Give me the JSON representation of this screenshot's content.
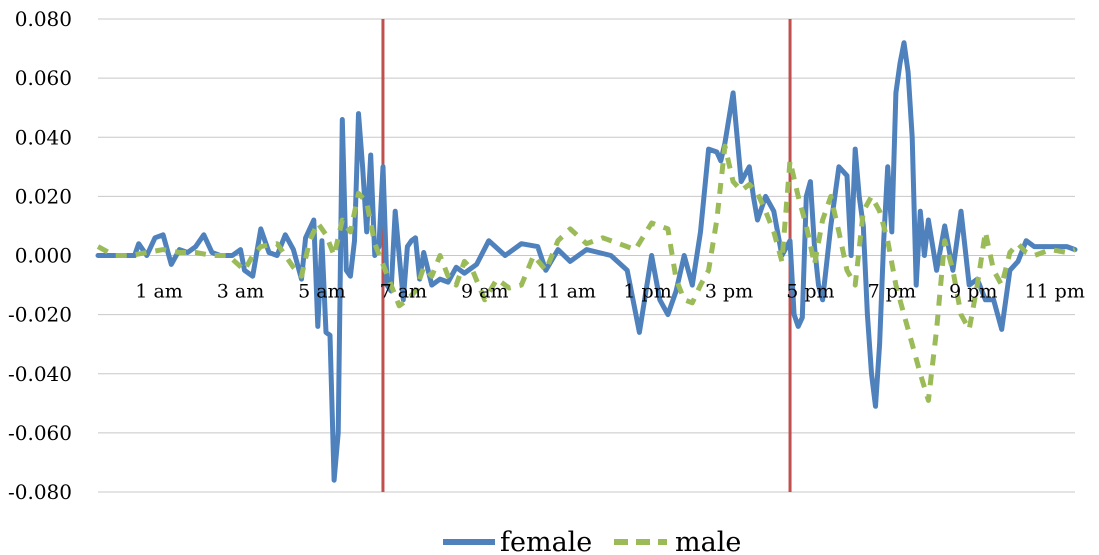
{
  "chart_data": {
    "type": "line",
    "title": "",
    "xlabel": "",
    "ylabel": "",
    "xlim": [
      0,
      24
    ],
    "ylim": [
      -0.08,
      0.08
    ],
    "y_ticks": [
      "0.080",
      "0.060",
      "0.040",
      "0.020",
      "0.000",
      "-0.020",
      "-0.040",
      "-0.060",
      "-0.080"
    ],
    "y_tick_values": [
      0.08,
      0.06,
      0.04,
      0.02,
      0.0,
      -0.02,
      -0.04,
      -0.06,
      -0.08
    ],
    "x_ticks": [
      "1 am",
      "3 am",
      "5 am",
      "7 am",
      "9 am",
      "11 am",
      "1 pm",
      "3 pm",
      "5 pm",
      "7 pm",
      "9 pm",
      "11 pm"
    ],
    "x_tick_values": [
      1.5,
      3.5,
      5.5,
      7.5,
      9.5,
      11.5,
      13.5,
      15.5,
      17.5,
      19.5,
      21.5,
      23.5
    ],
    "grid": "horizontal",
    "legend": "bottom",
    "vertical_markers": [
      {
        "x": 7.0,
        "color": "#c0504d"
      },
      {
        "x": 17.0,
        "color": "#c0504d"
      }
    ],
    "series": [
      {
        "name": "female",
        "style": "solid",
        "color": "#4f81bd",
        "x": [
          0.0,
          0.5,
          0.9,
          1.0,
          1.2,
          1.4,
          1.6,
          1.8,
          2.0,
          2.2,
          2.4,
          2.6,
          2.8,
          3.0,
          3.3,
          3.5,
          3.6,
          3.8,
          4.0,
          4.2,
          4.4,
          4.6,
          4.8,
          5.0,
          5.1,
          5.3,
          5.4,
          5.5,
          5.6,
          5.7,
          5.8,
          5.9,
          6.0,
          6.1,
          6.2,
          6.3,
          6.4,
          6.5,
          6.6,
          6.7,
          6.8,
          6.9,
          7.0,
          7.1,
          7.2,
          7.3,
          7.4,
          7.5,
          7.6,
          7.7,
          7.8,
          7.9,
          8.0,
          8.2,
          8.4,
          8.6,
          8.8,
          9.0,
          9.3,
          9.6,
          10.0,
          10.4,
          10.8,
          11.0,
          11.3,
          11.6,
          12.0,
          12.3,
          12.6,
          13.0,
          13.3,
          13.6,
          13.8,
          14.0,
          14.2,
          14.4,
          14.6,
          14.8,
          15.0,
          15.2,
          15.3,
          15.4,
          15.6,
          15.8,
          16.0,
          16.1,
          16.2,
          16.4,
          16.6,
          16.8,
          17.0,
          17.1,
          17.2,
          17.3,
          17.4,
          17.5,
          17.6,
          17.7,
          17.8,
          18.0,
          18.2,
          18.4,
          18.5,
          18.6,
          18.7,
          18.8,
          18.9,
          19.0,
          19.1,
          19.2,
          19.3,
          19.4,
          19.5,
          19.6,
          19.7,
          19.8,
          19.9,
          20.0,
          20.1,
          20.2,
          20.3,
          20.4,
          20.6,
          20.8,
          21.0,
          21.2,
          21.4,
          21.6,
          21.8,
          22.0,
          22.2,
          22.4,
          22.6,
          22.8,
          23.0,
          23.4,
          23.8,
          24.0
        ],
        "y": [
          0.0,
          0.0,
          0.0,
          0.004,
          0.0,
          0.006,
          0.007,
          -0.003,
          0.002,
          0.001,
          0.003,
          0.007,
          0.001,
          0.0,
          0.0,
          0.002,
          -0.005,
          -0.007,
          0.009,
          0.001,
          0.0,
          0.007,
          0.002,
          -0.008,
          0.006,
          0.012,
          -0.024,
          0.005,
          -0.026,
          -0.027,
          -0.076,
          -0.06,
          0.046,
          -0.005,
          -0.007,
          0.005,
          0.048,
          0.03,
          0.008,
          0.034,
          0.0,
          0.003,
          0.03,
          -0.01,
          -0.012,
          0.015,
          0.0,
          -0.015,
          0.003,
          0.005,
          0.006,
          -0.008,
          0.001,
          -0.01,
          -0.008,
          -0.009,
          -0.004,
          -0.006,
          -0.003,
          0.005,
          0.0,
          0.004,
          0.003,
          -0.005,
          0.002,
          -0.002,
          0.002,
          0.001,
          0.0,
          -0.005,
          -0.026,
          0.0,
          -0.015,
          -0.02,
          -0.012,
          0.0,
          -0.01,
          0.008,
          0.036,
          0.035,
          0.032,
          0.038,
          0.055,
          0.025,
          0.03,
          0.02,
          0.012,
          0.02,
          0.015,
          0.0,
          0.005,
          -0.02,
          -0.024,
          -0.021,
          0.02,
          0.025,
          0.003,
          -0.01,
          -0.015,
          0.01,
          0.03,
          0.027,
          0.0,
          0.036,
          0.02,
          0.01,
          -0.02,
          -0.04,
          -0.051,
          -0.03,
          0.005,
          0.03,
          0.008,
          0.055,
          0.065,
          0.072,
          0.062,
          0.04,
          -0.01,
          0.015,
          0.0,
          0.012,
          -0.005,
          0.01,
          -0.005,
          0.015,
          -0.01,
          -0.008,
          -0.015,
          -0.015,
          -0.025,
          -0.005,
          -0.002,
          0.005,
          0.003,
          0.003,
          0.003,
          0.002
        ]
      },
      {
        "name": "male",
        "style": "dashed",
        "color": "#9bbb59",
        "x": [
          0.0,
          0.4,
          0.8,
          1.2,
          1.6,
          2.0,
          2.4,
          2.8,
          3.2,
          3.6,
          3.8,
          4.0,
          4.4,
          4.8,
          5.0,
          5.2,
          5.4,
          5.6,
          5.8,
          6.0,
          6.2,
          6.4,
          6.6,
          6.8,
          7.0,
          7.2,
          7.4,
          7.6,
          7.8,
          8.0,
          8.2,
          8.4,
          8.6,
          8.8,
          9.0,
          9.2,
          9.5,
          9.8,
          10.1,
          10.4,
          10.7,
          11.0,
          11.3,
          11.6,
          12.0,
          12.4,
          12.8,
          13.2,
          13.6,
          14.0,
          14.2,
          14.4,
          14.6,
          14.8,
          15.0,
          15.2,
          15.4,
          15.6,
          15.8,
          16.0,
          16.2,
          16.4,
          16.6,
          16.8,
          17.0,
          17.2,
          17.4,
          17.6,
          17.8,
          18.0,
          18.2,
          18.4,
          18.6,
          18.8,
          19.0,
          19.2,
          19.4,
          19.6,
          19.8,
          20.0,
          20.2,
          20.4,
          20.6,
          20.8,
          21.0,
          21.2,
          21.4,
          21.6,
          21.8,
          22.0,
          22.2,
          22.4,
          22.6,
          22.8,
          23.0,
          23.4,
          23.8,
          24.0
        ],
        "y": [
          0.003,
          0.0,
          0.0,
          0.001,
          0.002,
          0.001,
          0.001,
          0.0,
          0.0,
          -0.005,
          0.0,
          0.003,
          0.004,
          -0.004,
          -0.007,
          0.005,
          0.011,
          0.007,
          0.0,
          0.012,
          0.008,
          0.021,
          0.018,
          0.004,
          -0.003,
          -0.01,
          -0.017,
          -0.015,
          -0.012,
          -0.004,
          -0.007,
          0.0,
          -0.007,
          -0.01,
          -0.002,
          -0.005,
          -0.015,
          -0.008,
          -0.011,
          -0.01,
          0.0,
          -0.005,
          0.005,
          0.009,
          0.004,
          0.006,
          0.004,
          0.002,
          0.011,
          0.009,
          -0.008,
          -0.015,
          -0.016,
          -0.01,
          -0.005,
          0.012,
          0.037,
          0.025,
          0.022,
          0.024,
          0.021,
          0.015,
          0.008,
          -0.002,
          0.032,
          0.02,
          0.01,
          -0.003,
          0.012,
          0.02,
          0.008,
          -0.005,
          -0.01,
          0.015,
          0.02,
          0.015,
          0.005,
          -0.01,
          -0.02,
          -0.03,
          -0.04,
          -0.049,
          -0.025,
          0.005,
          -0.005,
          -0.02,
          -0.025,
          -0.01,
          0.008,
          -0.005,
          -0.01,
          0.001,
          0.004,
          0.001,
          0.0,
          0.002,
          0.001,
          0.002
        ]
      }
    ]
  }
}
